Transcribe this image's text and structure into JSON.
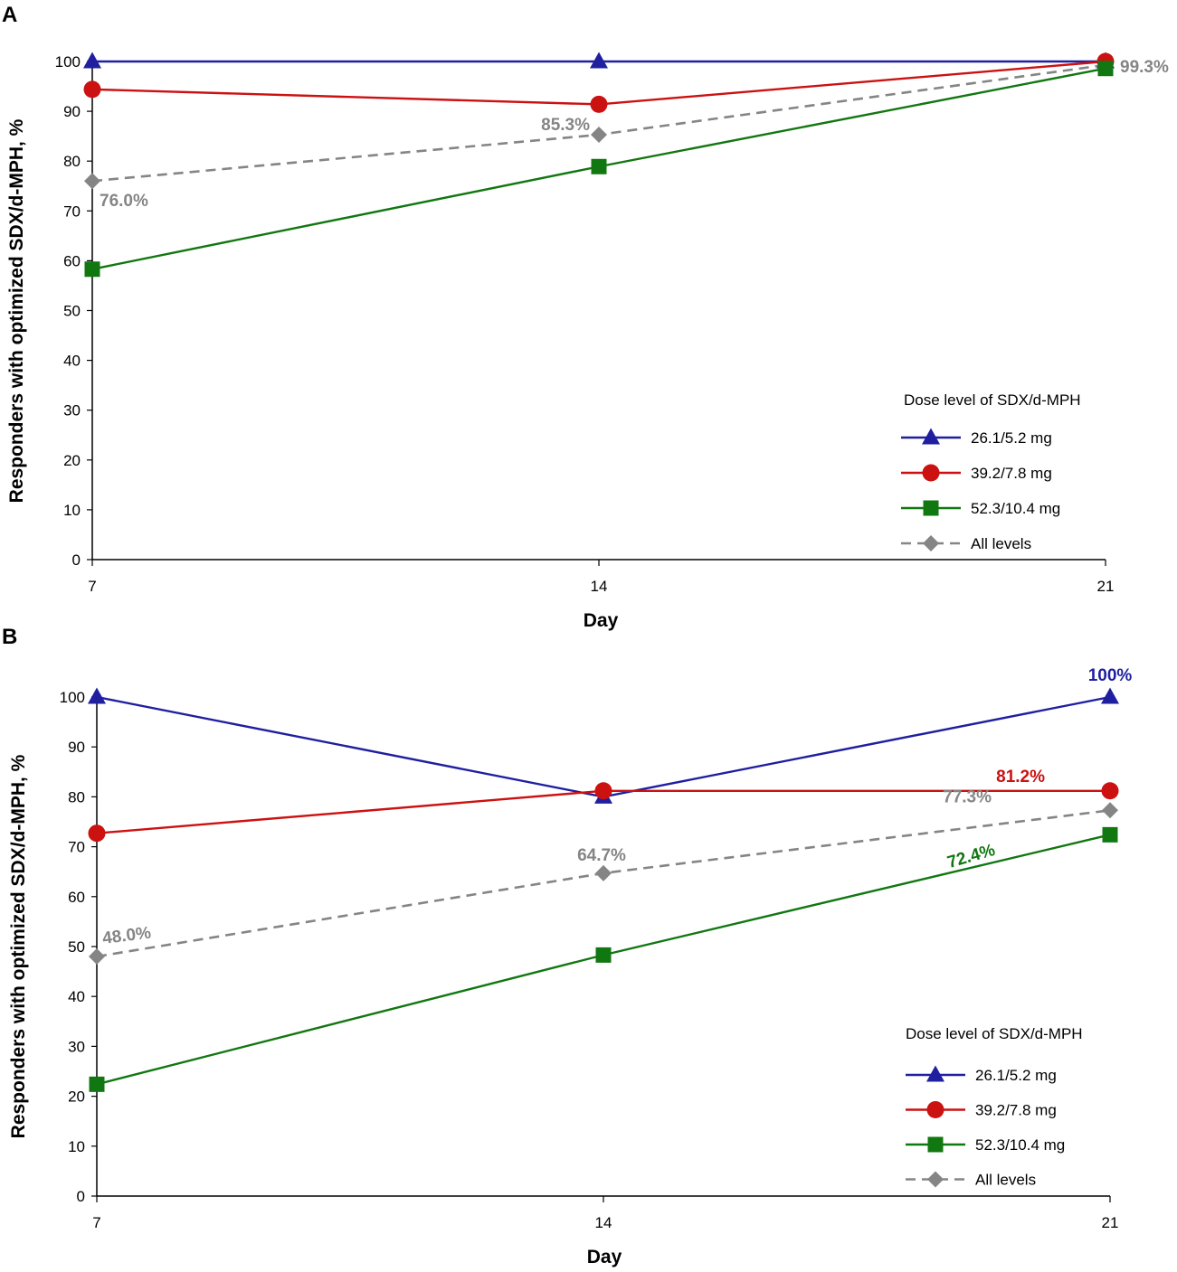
{
  "chart_data": [
    {
      "panel": "A",
      "type": "line",
      "xlabel": "Day",
      "ylabel": "Responders with optimized SDX/d-MPH, %",
      "x": [
        7,
        14,
        21
      ],
      "xticks": [
        "7",
        "14",
        "21"
      ],
      "ylim": [
        0,
        100
      ],
      "yticks": [
        "0",
        "10",
        "20",
        "30",
        "40",
        "50",
        "60",
        "70",
        "80",
        "90",
        "100"
      ],
      "legend_title": "Dose level of SDX/d-MPH",
      "legend_position": "bottom-right",
      "series": [
        {
          "key": "dose-26",
          "name": "26.1/5.2 mg",
          "values": [
            100,
            100,
            100
          ],
          "color": "#1f1fa0",
          "marker": "triangle",
          "dash": false
        },
        {
          "key": "dose-39",
          "name": "39.2/7.8 mg",
          "values": [
            94.4,
            91.4,
            100
          ],
          "color": "#cc1111",
          "marker": "circle",
          "dash": false
        },
        {
          "key": "dose-52",
          "name": "52.3/10.4 mg",
          "values": [
            58.3,
            78.9,
            98.6
          ],
          "color": "#117711",
          "marker": "square",
          "dash": false
        },
        {
          "key": "all-levels",
          "name": "All levels",
          "values": [
            76.0,
            85.3,
            99.3
          ],
          "color": "#858585",
          "marker": "diamond",
          "dash": true
        }
      ],
      "annotations": [
        {
          "text": "76.0%",
          "series": "all-levels",
          "index": 0,
          "color": "#858585"
        },
        {
          "text": "85.3%",
          "series": "all-levels",
          "index": 1,
          "color": "#858585"
        },
        {
          "text": "99.3%",
          "series": "all-levels",
          "index": 2,
          "color": "#858585"
        }
      ]
    },
    {
      "panel": "B",
      "type": "line",
      "xlabel": "Day",
      "ylabel": "Responders with optimized SDX/d-MPH, %",
      "x": [
        7,
        14,
        21
      ],
      "xticks": [
        "7",
        "14",
        "21"
      ],
      "ylim": [
        0,
        100
      ],
      "yticks": [
        "0",
        "10",
        "20",
        "30",
        "40",
        "50",
        "60",
        "70",
        "80",
        "90",
        "100"
      ],
      "legend_title": "Dose level of SDX/d-MPH",
      "legend_position": "bottom-right",
      "series": [
        {
          "key": "dose-26",
          "name": "26.1/5.2 mg",
          "values": [
            100,
            80.0,
            100
          ],
          "color": "#1f1fa0",
          "marker": "triangle",
          "dash": false
        },
        {
          "key": "dose-39",
          "name": "39.2/7.8 mg",
          "values": [
            72.7,
            81.2,
            81.2
          ],
          "color": "#cc1111",
          "marker": "circle",
          "dash": false
        },
        {
          "key": "dose-52",
          "name": "52.3/10.4 mg",
          "values": [
            22.4,
            48.3,
            72.4
          ],
          "color": "#117711",
          "marker": "square",
          "dash": false
        },
        {
          "key": "all-levels",
          "name": "All levels",
          "values": [
            48.0,
            64.7,
            77.3
          ],
          "color": "#858585",
          "marker": "diamond",
          "dash": true
        }
      ],
      "annotations": [
        {
          "text": "100%",
          "series": "dose-26",
          "index": 2,
          "color": "#1f1fa0"
        },
        {
          "text": "81.2%",
          "series": "dose-39",
          "index": 2,
          "color": "#cc1111"
        },
        {
          "text": "77.3%",
          "series": "all-levels",
          "index": 2,
          "color": "#858585"
        },
        {
          "text": "72.4%",
          "series": "dose-52",
          "index": 2,
          "color": "#117711"
        },
        {
          "text": "64.7%",
          "series": "all-levels",
          "index": 1,
          "color": "#858585"
        },
        {
          "text": "48.0%",
          "series": "all-levels",
          "index": 0,
          "color": "#858585"
        }
      ]
    }
  ]
}
